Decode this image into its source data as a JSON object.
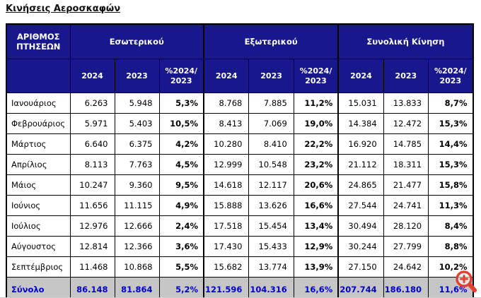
{
  "page": {
    "title": "Κινήσεις Αεροσκαφών"
  },
  "colors": {
    "header_bg": "#18188C",
    "header_text": "#FFFFFF",
    "total_bg": "#C6C6C6",
    "total_text": "#0000CC",
    "border": "#000000",
    "magnifier_red": "#E3402F"
  },
  "icons": {
    "magnifier": "zoom-in-magnifier-plus"
  },
  "table": {
    "corner_header": "ΑΡΙΘΜΟΣ\nΠΤΗΣΕΩΝ",
    "groups": [
      {
        "label": "Εσωτερικού"
      },
      {
        "label": "Εξωτερικού"
      },
      {
        "label": "Συνολική Κίνηση"
      }
    ],
    "sub_headers": [
      "2024",
      "2023",
      "%2024/\n2023"
    ],
    "rows": [
      {
        "label": "Ιανουάριος",
        "values": [
          "6.263",
          "5.948",
          "5,3%",
          "8.768",
          "7.885",
          "11,2%",
          "15.031",
          "13.833",
          "8,7%"
        ]
      },
      {
        "label": "Φεβρουάριος",
        "values": [
          "5.971",
          "5.403",
          "10,5%",
          "8.413",
          "7.069",
          "19,0%",
          "14.384",
          "12.472",
          "15,3%"
        ]
      },
      {
        "label": "Μάρτιος",
        "values": [
          "6.640",
          "6.375",
          "4,2%",
          "10.280",
          "8.410",
          "22,2%",
          "16.920",
          "14.785",
          "14,4%"
        ]
      },
      {
        "label": "Απρίλιος",
        "values": [
          "8.113",
          "7.763",
          "4,5%",
          "12.999",
          "10.548",
          "23,2%",
          "21.112",
          "18.311",
          "15,3%"
        ]
      },
      {
        "label": "Μάιος",
        "values": [
          "10.247",
          "9.360",
          "9,5%",
          "14.618",
          "12.117",
          "20,6%",
          "24.865",
          "21.477",
          "15,8%"
        ]
      },
      {
        "label": "Ιούνιος",
        "values": [
          "11.656",
          "11.115",
          "4,9%",
          "15.888",
          "13.626",
          "16,6%",
          "27.544",
          "24.741",
          "11,3%"
        ]
      },
      {
        "label": "Ιούλιος",
        "values": [
          "12.976",
          "12.666",
          "2,4%",
          "17.518",
          "15.454",
          "13,4%",
          "30.494",
          "28.120",
          "8,4%"
        ]
      },
      {
        "label": "Αύγουστος",
        "values": [
          "12.814",
          "12.366",
          "3,6%",
          "17.430",
          "15.433",
          "12,9%",
          "30.244",
          "27.799",
          "8,8%"
        ]
      },
      {
        "label": "Σεπτέμβριος",
        "values": [
          "11.468",
          "10.868",
          "5,5%",
          "15.682",
          "13.774",
          "13,9%",
          "27.150",
          "24.642",
          "10,2%"
        ]
      }
    ],
    "total": {
      "label": "Σύνολο",
      "values": [
        "86.148",
        "81.864",
        "5,2%",
        "121.596",
        "104.316",
        "16,6%",
        "207.744",
        "186.180",
        "11,6%"
      ]
    }
  }
}
